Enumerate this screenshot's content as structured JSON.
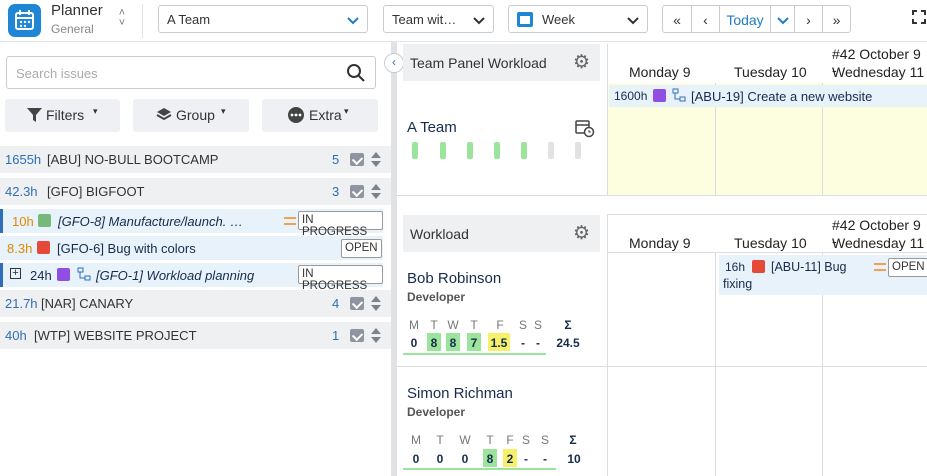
{
  "app": {
    "title": "Planner",
    "subtitle": "General"
  },
  "toolbar": {
    "team_select": "A Team",
    "view_select": "Team wit…",
    "period_select": "Week",
    "today_label": "Today"
  },
  "left": {
    "search_placeholder": "Search issues",
    "filters_label": "Filters",
    "group_label": "Group",
    "extra_label": "Extra",
    "groups": [
      {
        "hours": "1655h",
        "name": "[ABU] NO-BULL BOOTCAMP",
        "count": "5"
      },
      {
        "hours": "42.3h",
        "name": "[GFO] BIGFOOT",
        "count": "3"
      },
      {
        "hours": "21.7h",
        "name": "[NAR] CANARY",
        "count": "4"
      },
      {
        "hours": "40h",
        "name": "[WTP] WEBSITE PROJECT",
        "count": "1"
      }
    ],
    "issues": [
      {
        "hours": "10h",
        "title": "[GFO-8] Manufacture/launch. …",
        "status": "IN PROGRESS"
      },
      {
        "hours": "8.3h",
        "title": "[GFO-6] Bug with colors",
        "status": "OPEN"
      },
      {
        "hours": "24h",
        "title": "[GFO-1] Workload planning",
        "status": "IN PROGRESS"
      }
    ]
  },
  "team_panel": {
    "title": "Team Panel Workload",
    "week_label": "#42 October 9 -",
    "days": [
      "Monday 9",
      "Tuesday 10",
      "Wednesday 11"
    ],
    "team_name": "A Team",
    "event": {
      "hours": "1600h",
      "title": "[ABU-19] Create a new website"
    }
  },
  "workload_panel": {
    "title": "Workload",
    "week_label": "#42 October 9 -",
    "days": [
      "Monday 9",
      "Tuesday 10",
      "Wednesday 11"
    ],
    "users": [
      {
        "name": "Bob Robinson",
        "role": "Developer",
        "days": [
          "M",
          "T",
          "W",
          "T",
          "F",
          "S",
          "S"
        ],
        "values": [
          "0",
          "8",
          "8",
          "7",
          "1.5",
          "-",
          "-"
        ],
        "sum": "24.5",
        "task": {
          "hours": "16h",
          "title": "[ABU-11] Bug",
          "title2": "fixing",
          "status": "OPEN"
        }
      },
      {
        "name": "Simon Richman",
        "role": "Developer",
        "days": [
          "M",
          "T",
          "W",
          "T",
          "F",
          "S",
          "S"
        ],
        "values": [
          "0",
          "0",
          "0",
          "8",
          "2",
          "-",
          "-"
        ],
        "sum": "10"
      }
    ],
    "sum_label": "Σ"
  },
  "colors": {
    "accent": "#1f86d6",
    "green": "#9be49b",
    "yellow": "#f7f06b",
    "event_bg": "#fdfde0"
  }
}
